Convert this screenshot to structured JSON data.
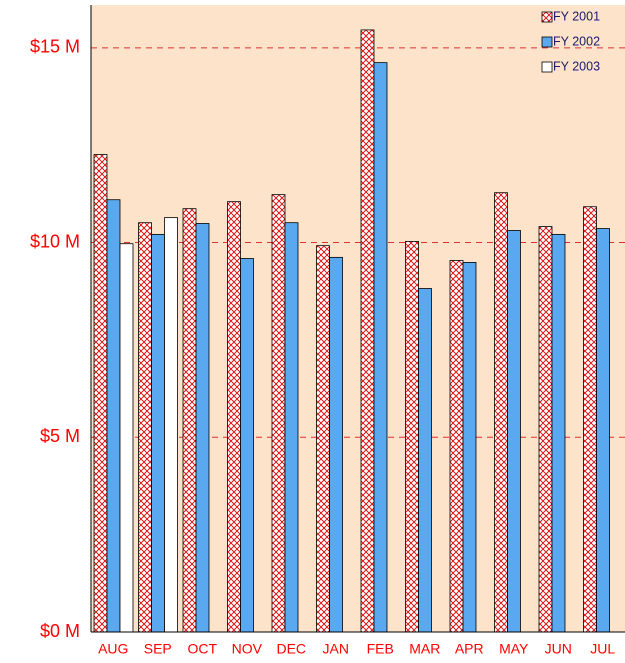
{
  "chart_data": {
    "type": "bar",
    "categories": [
      "AUG",
      "SEP",
      "OCT",
      "NOV",
      "DEC",
      "JAN",
      "FEB",
      "MAR",
      "APR",
      "MAY",
      "JUN",
      "JUL"
    ],
    "series": [
      {
        "name": "FY 2001",
        "color": "#ff0000",
        "hatch": true,
        "values": [
          12.26,
          10.51,
          10.87,
          11.05,
          11.23,
          9.92,
          15.46,
          10.03,
          9.54,
          11.28,
          10.41,
          10.92
        ]
      },
      {
        "name": "FY 2002",
        "color": "#5aa9f0",
        "hatch": false,
        "values": [
          11.1,
          10.21,
          10.49,
          9.59,
          10.51,
          9.62,
          14.62,
          8.82,
          9.49,
          10.31,
          10.21,
          10.36
        ]
      },
      {
        "name": "FY 2003",
        "color": "#ffffff",
        "hatch": false,
        "values": [
          9.97,
          10.64,
          null,
          null,
          null,
          null,
          null,
          null,
          null,
          null,
          null,
          null
        ]
      }
    ],
    "ylim": [
      0,
      16.1
    ],
    "yticks": [
      {
        "value": 0,
        "label": "$0 M"
      },
      {
        "value": 5,
        "label": "$5 M"
      },
      {
        "value": 10,
        "label": "$10 M"
      },
      {
        "value": 15,
        "label": "$15 M"
      }
    ],
    "grid": true,
    "legend": "top-right"
  }
}
